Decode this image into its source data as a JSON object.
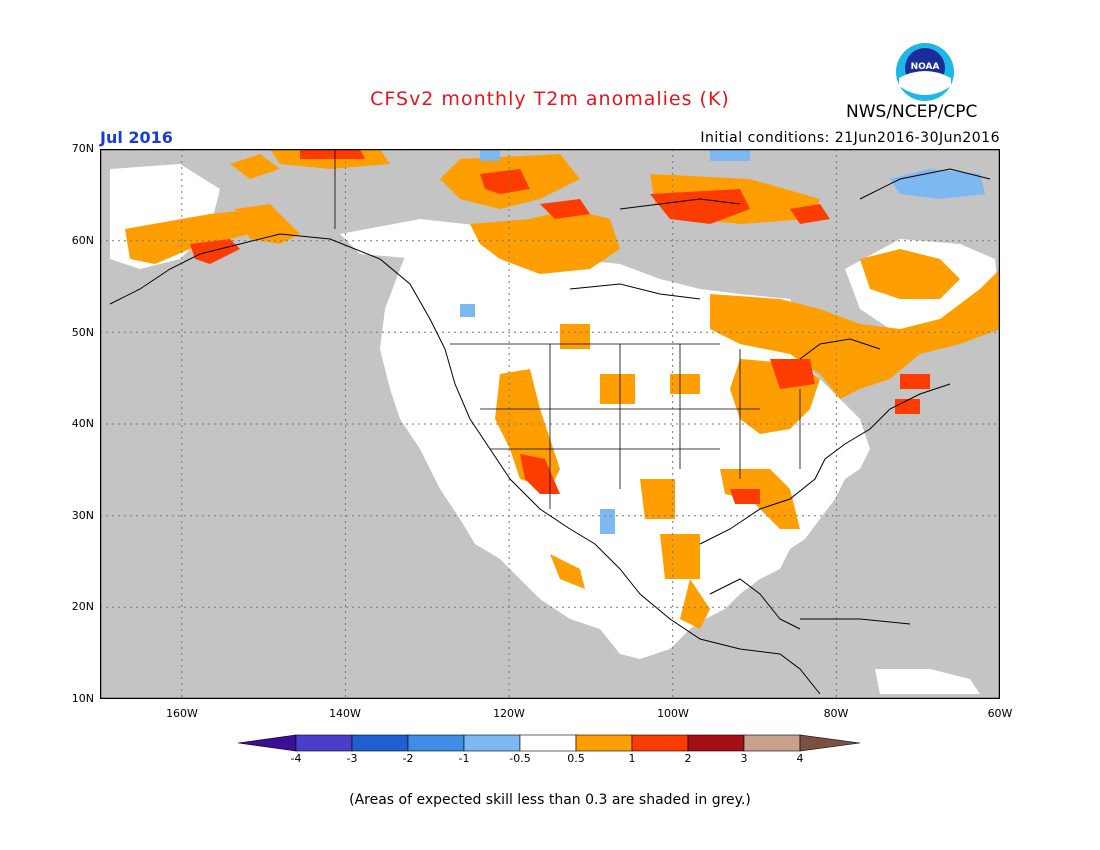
{
  "header": {
    "title": "CFSv2 monthly T2m anomalies (K)",
    "organization": "NWS/NCEP/CPC",
    "logo_text": "NOAA",
    "month": "Jul 2016",
    "initial_conditions_label": "Initial conditions:",
    "initial_conditions_value": "21Jun2016-30Jun2016"
  },
  "map": {
    "lat_labels": [
      "70N",
      "60N",
      "50N",
      "40N",
      "30N",
      "20N",
      "10N"
    ],
    "lon_labels": [
      "160W",
      "140W",
      "120W",
      "100W",
      "80W",
      "60W"
    ],
    "background_color": "#c4c4c4"
  },
  "legend": {
    "labels": [
      "-4",
      "-3",
      "-2",
      "-1",
      "-0.5",
      "0.5",
      "1",
      "2",
      "3",
      "4"
    ],
    "colors": [
      "#3d0f99",
      "#4a3fc8",
      "#1f5fd0",
      "#3e8ee8",
      "#7eb8f0",
      "#ffffff",
      "#ff9e00",
      "#ff3c00",
      "#a50f15",
      "#c8a08c",
      "#7a5040"
    ]
  },
  "footnote": "(Areas of expected skill less than 0.3 are shaded in grey.)"
}
